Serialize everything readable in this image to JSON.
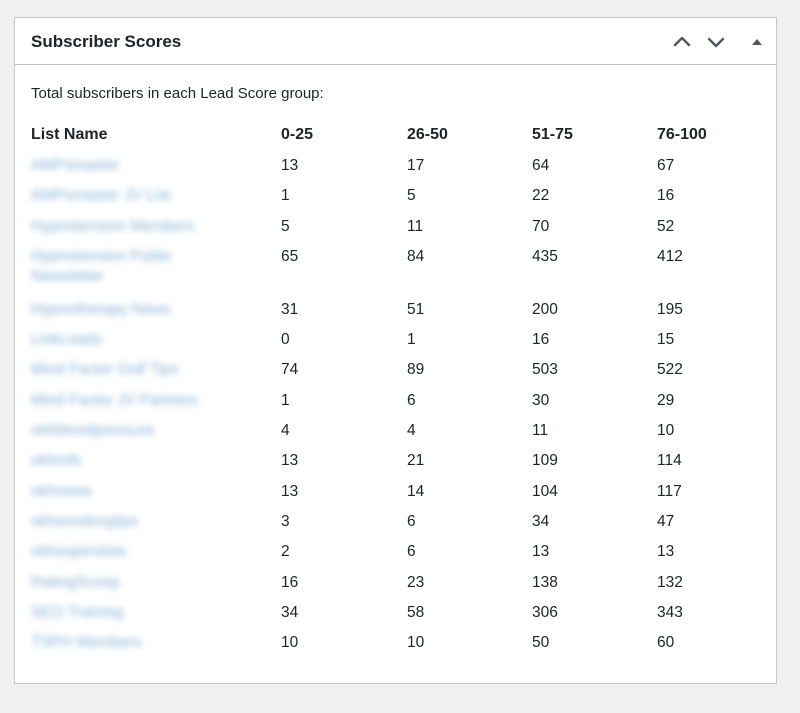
{
  "widget": {
    "title": "Subscriber Scores"
  },
  "intro_text": "Total subscribers in each Lead Score group:",
  "table": {
    "headers": [
      "List Name",
      "0-25",
      "26-50",
      "51-75",
      "76-100"
    ],
    "rows": [
      {
        "name": "AMPsmaster",
        "a": "13",
        "b": "17",
        "c": "64",
        "d": "67"
      },
      {
        "name": "AMPsmaster JV List",
        "a": "1",
        "b": "5",
        "c": "22",
        "d": "16"
      },
      {
        "name": "Hypnotension Members",
        "a": "5",
        "b": "11",
        "c": "70",
        "d": "52"
      },
      {
        "name": "Hypnotension Public Newsletter",
        "a": "65",
        "b": "84",
        "c": "435",
        "d": "412"
      },
      {
        "name": "Hypnotherapy News",
        "a": "31",
        "b": "51",
        "c": "200",
        "d": "195"
      },
      {
        "name": "LinkLeads",
        "a": "0",
        "b": "1",
        "c": "16",
        "d": "15"
      },
      {
        "name": "Mind Factor Golf Tips",
        "a": "74",
        "b": "89",
        "c": "503",
        "d": "522"
      },
      {
        "name": "Mind Factor JV Partners",
        "a": "1",
        "b": "6",
        "c": "30",
        "d": "29"
      },
      {
        "name": "okhbloodpressure",
        "a": "4",
        "b": "4",
        "c": "11",
        "d": "10"
      },
      {
        "name": "okhmfs",
        "a": "13",
        "b": "21",
        "c": "109",
        "d": "114"
      },
      {
        "name": "okhnews",
        "a": "13",
        "b": "14",
        "c": "104",
        "d": "117"
      },
      {
        "name": "okhsmokingtips",
        "a": "3",
        "b": "6",
        "c": "34",
        "d": "47"
      },
      {
        "name": "okhsuperslots",
        "a": "2",
        "b": "6",
        "c": "13",
        "d": "13"
      },
      {
        "name": "RatingScoop",
        "a": "16",
        "b": "23",
        "c": "138",
        "d": "132"
      },
      {
        "name": "SEO Training",
        "a": "34",
        "b": "58",
        "c": "306",
        "d": "343"
      },
      {
        "name": "TSPH Members",
        "a": "10",
        "b": "10",
        "c": "50",
        "d": "60"
      }
    ]
  },
  "icons": {
    "move_up": "chevron-up-icon",
    "move_down": "chevron-down-icon",
    "toggle": "triangle-up-icon"
  },
  "colors": {
    "link": "#2271b1",
    "border": "#c3c4c7",
    "background": "#f0f0f1",
    "text": "#1d2327",
    "icon": "#50575e"
  }
}
